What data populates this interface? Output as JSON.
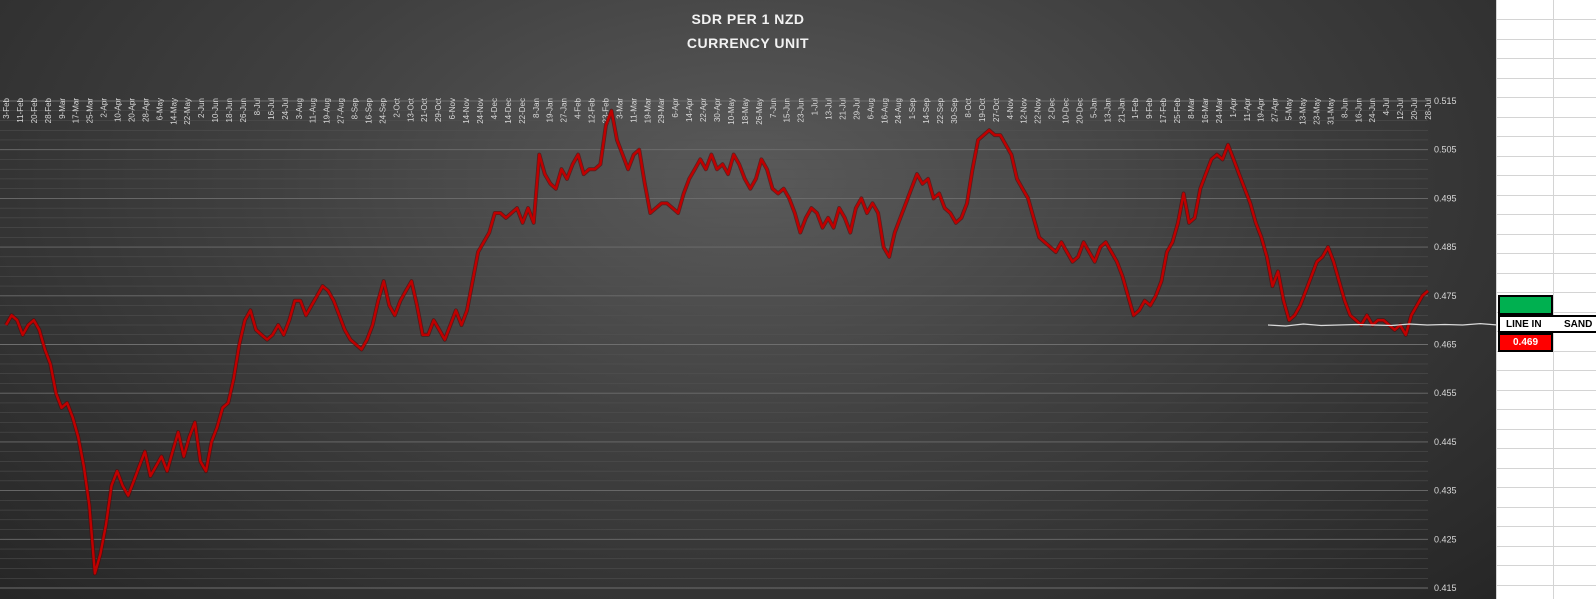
{
  "chart_data": {
    "type": "line",
    "title": "SDR PER 1 NZD",
    "subtitle": "CURRENCY UNIT",
    "xlabel": "",
    "ylabel": "",
    "ylim": [
      0.415,
      0.515
    ],
    "y_ticks": [
      "0.515",
      "0.505",
      "0.495",
      "0.485",
      "0.475",
      "0.465",
      "0.455",
      "0.445",
      "0.435",
      "0.425",
      "0.415"
    ],
    "x_tick_labels": [
      "3-Feb",
      "11-Feb",
      "20-Feb",
      "28-Feb",
      "9-Mar",
      "17-Mar",
      "25-Mar",
      "2-Apr",
      "10-Apr",
      "20-Apr",
      "28-Apr",
      "6-May",
      "14-May",
      "22-May",
      "2-Jun",
      "10-Jun",
      "18-Jun",
      "26-Jun",
      "8-Jul",
      "16-Jul",
      "24-Jul",
      "3-Aug",
      "11-Aug",
      "19-Aug",
      "27-Aug",
      "8-Sep",
      "16-Sep",
      "24-Sep",
      "2-Oct",
      "13-Oct",
      "21-Oct",
      "29-Oct",
      "6-Nov",
      "14-Nov",
      "24-Nov",
      "4-Dec",
      "14-Dec",
      "22-Dec",
      "8-Jan",
      "19-Jan",
      "27-Jan",
      "4-Feb",
      "12-Feb",
      "23-Feb",
      "3-Mar",
      "11-Mar",
      "19-Mar",
      "29-Mar",
      "6-Apr",
      "14-Apr",
      "22-Apr",
      "30-Apr",
      "10-May",
      "18-May",
      "26-May",
      "7-Jun",
      "15-Jun",
      "23-Jun",
      "1-Jul",
      "13-Jul",
      "21-Jul",
      "29-Jul",
      "6-Aug",
      "16-Aug",
      "24-Aug",
      "1-Sep",
      "14-Sep",
      "22-Sep",
      "30-Sep",
      "8-Oct",
      "19-Oct",
      "27-Oct",
      "4-Nov",
      "12-Nov",
      "22-Nov",
      "2-Dec",
      "10-Dec",
      "20-Dec",
      "5-Jan",
      "13-Jan",
      "21-Jan",
      "1-Feb",
      "9-Feb",
      "17-Feb",
      "25-Feb",
      "8-Mar",
      "16-Mar",
      "24-Mar",
      "1-Apr",
      "11-Apr",
      "19-Apr",
      "27-Apr",
      "5-May",
      "13-May",
      "23-May",
      "31-May",
      "8-Jun",
      "16-Jun",
      "24-Jun",
      "4-Jul",
      "12-Jul",
      "20-Jul",
      "28-Jul"
    ],
    "series": [
      {
        "color": "#c00000",
        "y": [
          0.469,
          0.471,
          0.47,
          0.467,
          0.469,
          0.47,
          0.468,
          0.464,
          0.461,
          0.455,
          0.452,
          0.453,
          0.45,
          0.446,
          0.44,
          0.432,
          0.418,
          0.422,
          0.428,
          0.436,
          0.439,
          0.436,
          0.434,
          0.437,
          0.44,
          0.443,
          0.438,
          0.44,
          0.442,
          0.439,
          0.443,
          0.447,
          0.442,
          0.446,
          0.449,
          0.441,
          0.439,
          0.445,
          0.448,
          0.452,
          0.453,
          0.458,
          0.465,
          0.47,
          0.472,
          0.468,
          0.467,
          0.466,
          0.467,
          0.469,
          0.467,
          0.47,
          0.474,
          0.474,
          0.471,
          0.473,
          0.475,
          0.477,
          0.476,
          0.474,
          0.471,
          0.468,
          0.466,
          0.465,
          0.464,
          0.466,
          0.469,
          0.474,
          0.478,
          0.473,
          0.471,
          0.474,
          0.476,
          0.478,
          0.473,
          0.467,
          0.467,
          0.47,
          0.468,
          0.466,
          0.469,
          0.472,
          0.469,
          0.472,
          0.478,
          0.484,
          0.486,
          0.488,
          0.492,
          0.492,
          0.491,
          0.492,
          0.493,
          0.49,
          0.493,
          0.49,
          0.504,
          0.5,
          0.498,
          0.497,
          0.501,
          0.499,
          0.502,
          0.504,
          0.5,
          0.501,
          0.501,
          0.502,
          0.51,
          0.513,
          0.507,
          0.504,
          0.501,
          0.504,
          0.505,
          0.498,
          0.492,
          0.493,
          0.494,
          0.494,
          0.493,
          0.492,
          0.496,
          0.499,
          0.501,
          0.503,
          0.501,
          0.504,
          0.501,
          0.502,
          0.5,
          0.504,
          0.502,
          0.499,
          0.497,
          0.499,
          0.503,
          0.501,
          0.497,
          0.496,
          0.497,
          0.495,
          0.492,
          0.488,
          0.491,
          0.493,
          0.492,
          0.489,
          0.491,
          0.489,
          0.493,
          0.491,
          0.488,
          0.493,
          0.495,
          0.492,
          0.494,
          0.492,
          0.485,
          0.483,
          0.488,
          0.491,
          0.494,
          0.497,
          0.5,
          0.498,
          0.499,
          0.495,
          0.496,
          0.493,
          0.492,
          0.49,
          0.491,
          0.494,
          0.501,
          0.507,
          0.508,
          0.509,
          0.508,
          0.508,
          0.506,
          0.504,
          0.499,
          0.497,
          0.495,
          0.491,
          0.487,
          0.486,
          0.485,
          0.484,
          0.486,
          0.484,
          0.482,
          0.483,
          0.486,
          0.484,
          0.482,
          0.485,
          0.486,
          0.484,
          0.482,
          0.479,
          0.475,
          0.471,
          0.472,
          0.474,
          0.473,
          0.475,
          0.478,
          0.484,
          0.486,
          0.49,
          0.496,
          0.49,
          0.491,
          0.497,
          0.5,
          0.503,
          0.504,
          0.503,
          0.506,
          0.503,
          0.5,
          0.497,
          0.494,
          0.49,
          0.487,
          0.483,
          0.477,
          0.48,
          0.474,
          0.47,
          0.471,
          0.473,
          0.476,
          0.479,
          0.482,
          0.483,
          0.485,
          0.482,
          0.478,
          0.474,
          0.471,
          0.47,
          0.469,
          0.471,
          0.469,
          0.47,
          0.47,
          0.469,
          0.468,
          0.469,
          0.467,
          0.471,
          0.473,
          0.475,
          0.476
        ]
      },
      {
        "color": "#d9d9d9",
        "y": [
          0.469,
          0.4688,
          0.4692,
          0.4689,
          0.469,
          0.4691,
          0.469,
          0.4689,
          0.4692,
          0.469,
          0.4691,
          0.469,
          0.4693,
          0.469
        ]
      }
    ],
    "grid": true,
    "legend": "none"
  },
  "sheet": {
    "line_label": "LINE IN",
    "sand_label": "SAND",
    "value": "0.469"
  }
}
